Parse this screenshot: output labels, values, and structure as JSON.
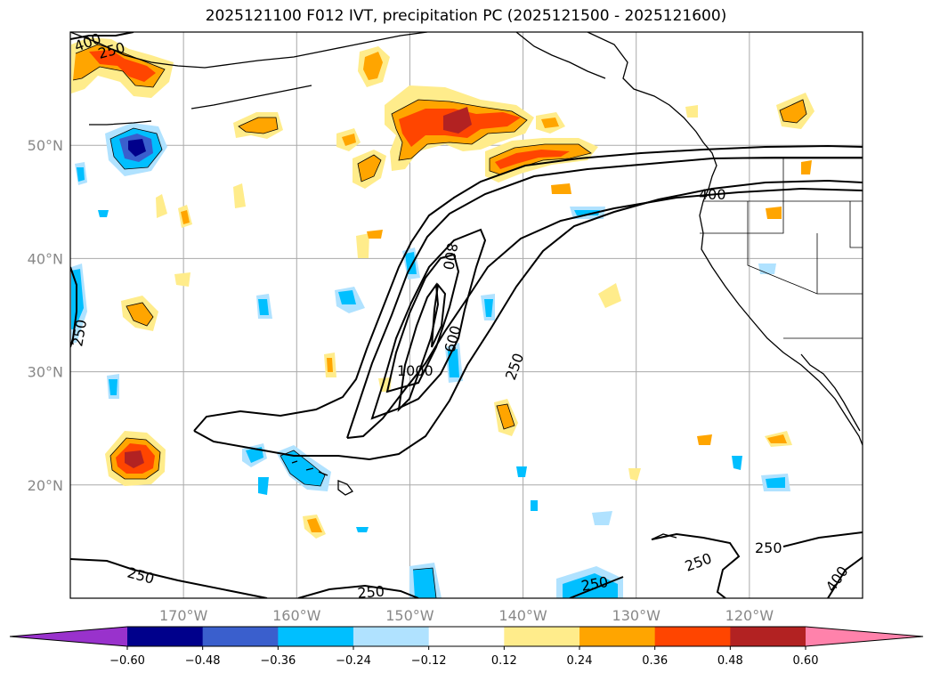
{
  "title": "2025121100 F012 IVT, precipitation PC (2025121500 - 2025121600)",
  "map": {
    "lat_ticks": [
      {
        "label": "50°N",
        "lat": 50
      },
      {
        "label": "40°N",
        "lat": 40
      },
      {
        "label": "30°N",
        "lat": 30
      },
      {
        "label": "20°N",
        "lat": 20
      }
    ],
    "lon_ticks": [
      {
        "label": "170°W",
        "lon": -170
      },
      {
        "label": "160°W",
        "lon": -160
      },
      {
        "label": "150°W",
        "lon": -150
      },
      {
        "label": "140°W",
        "lon": -140
      },
      {
        "label": "130°W",
        "lon": -130
      },
      {
        "label": "120°W",
        "lon": -120
      }
    ],
    "extent": {
      "lon_min": -180,
      "lon_max": -110,
      "lat_min": 10,
      "lat_max": 60
    },
    "ivt_contour_labels": [
      "400",
      "250",
      "250",
      "800",
      "600",
      "1000",
      "250",
      "400",
      "250",
      "250",
      "250",
      "250",
      "400",
      "250"
    ]
  },
  "colorbar": {
    "ticks": [
      "−0.60",
      "−0.48",
      "−0.36",
      "−0.24",
      "−0.12",
      "0.12",
      "0.24",
      "0.36",
      "0.48",
      "0.60"
    ],
    "colors": [
      "#9932cc",
      "#00008b",
      "#3a5fcd",
      "#00bfff",
      "#b0e2ff",
      "#ffffff",
      "#ffec8b",
      "#ffa500",
      "#ff4500",
      "#b22222",
      "#ff82ab"
    ]
  }
}
